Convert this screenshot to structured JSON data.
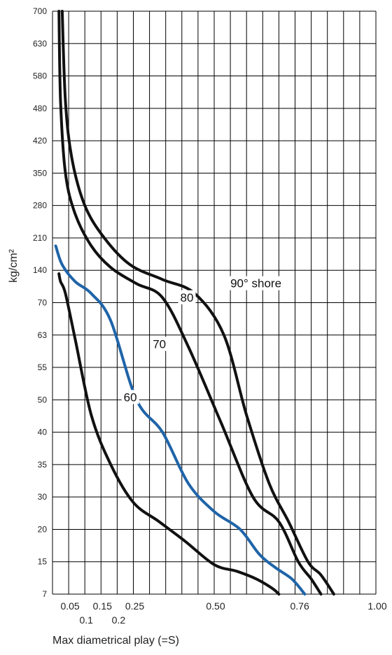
{
  "chart_data": {
    "type": "line",
    "title": "",
    "xlabel": "Max diametrical play (=S)",
    "ylabel": "kg/cm²",
    "x_ticks": [
      {
        "value": 0.05,
        "label": "0.05",
        "row": 1
      },
      {
        "value": 0.1,
        "label": "0.1",
        "row": 2
      },
      {
        "value": 0.15,
        "label": "0.15",
        "row": 1
      },
      {
        "value": 0.2,
        "label": "0.2",
        "row": 2
      },
      {
        "value": 0.25,
        "label": "0.25",
        "row": 1
      },
      {
        "value": 0.5,
        "label": "0.50",
        "row": 1
      },
      {
        "value": 0.76,
        "label": "0.76",
        "row": 1
      },
      {
        "value": 1.0,
        "label": "1.00",
        "row": 1
      }
    ],
    "x_grid_step": 0.05,
    "xlim": [
      0,
      1.0
    ],
    "y_ticks": [
      {
        "value": 7,
        "label": "7"
      },
      {
        "value": 15,
        "label": "15"
      },
      {
        "value": 20,
        "label": "20"
      },
      {
        "value": 30,
        "label": "30"
      },
      {
        "value": 35,
        "label": "35"
      },
      {
        "value": 40,
        "label": "40"
      },
      {
        "value": 50,
        "label": "50"
      },
      {
        "value": 55,
        "label": "55"
      },
      {
        "value": 63,
        "label": "63"
      },
      {
        "value": 70,
        "label": "70"
      },
      {
        "value": 140,
        "label": "140"
      },
      {
        "value": 210,
        "label": "210"
      },
      {
        "value": 280,
        "label": "280"
      },
      {
        "value": 350,
        "label": "350"
      },
      {
        "value": 420,
        "label": "420"
      },
      {
        "value": 480,
        "label": "480"
      },
      {
        "value": 580,
        "label": "580"
      },
      {
        "value": 630,
        "label": "630"
      },
      {
        "value": 700,
        "label": "700"
      }
    ],
    "ylim": [
      7,
      700
    ],
    "grid": true,
    "series": [
      {
        "name": "60",
        "color": "#111111",
        "points": [
          [
            0.02,
            130
          ],
          [
            0.025,
            110
          ],
          [
            0.04,
            85
          ],
          [
            0.07,
            62
          ],
          [
            0.12,
            45
          ],
          [
            0.18,
            35
          ],
          [
            0.25,
            28
          ],
          [
            0.33,
            22
          ],
          [
            0.41,
            18
          ],
          [
            0.5,
            14
          ],
          [
            0.57,
            12
          ],
          [
            0.63,
            10
          ],
          [
            0.68,
            8
          ],
          [
            0.7,
            7
          ]
        ]
      },
      {
        "name": "70",
        "color": "#1f64a8",
        "points": [
          [
            0.01,
            190
          ],
          [
            0.03,
            150
          ],
          [
            0.07,
            110
          ],
          [
            0.12,
            85
          ],
          [
            0.18,
            66
          ],
          [
            0.26,
            50
          ],
          [
            0.34,
            40
          ],
          [
            0.42,
            32
          ],
          [
            0.5,
            25
          ],
          [
            0.58,
            20
          ],
          [
            0.64,
            16
          ],
          [
            0.69,
            13
          ],
          [
            0.74,
            10
          ],
          [
            0.78,
            7
          ]
        ]
      },
      {
        "name": "80",
        "color": "#111111",
        "points": [
          [
            0.02,
            700
          ],
          [
            0.025,
            500
          ],
          [
            0.04,
            350
          ],
          [
            0.07,
            260
          ],
          [
            0.12,
            190
          ],
          [
            0.18,
            145
          ],
          [
            0.26,
            105
          ],
          [
            0.34,
            78
          ],
          [
            0.42,
            60
          ],
          [
            0.52,
            43
          ],
          [
            0.62,
            30
          ],
          [
            0.7,
            22
          ],
          [
            0.76,
            15
          ],
          [
            0.8,
            10
          ],
          [
            0.83,
            7
          ]
        ]
      },
      {
        "name": "90° shore",
        "color": "#111111",
        "points": [
          [
            0.03,
            700
          ],
          [
            0.04,
            500
          ],
          [
            0.06,
            380
          ],
          [
            0.1,
            280
          ],
          [
            0.16,
            210
          ],
          [
            0.24,
            150
          ],
          [
            0.34,
            115
          ],
          [
            0.44,
            85
          ],
          [
            0.53,
            63
          ],
          [
            0.6,
            45
          ],
          [
            0.67,
            32
          ],
          [
            0.73,
            22
          ],
          [
            0.79,
            15
          ],
          [
            0.83,
            11
          ],
          [
            0.87,
            7
          ]
        ]
      }
    ],
    "curve_labels": [
      {
        "text": "90° shore",
        "x": 0.55,
        "y": 100
      },
      {
        "text": "80",
        "x": 0.395,
        "y": 74
      },
      {
        "text": "70",
        "x": 0.31,
        "y": 60
      },
      {
        "text": "60",
        "x": 0.22,
        "y": 50
      }
    ]
  }
}
